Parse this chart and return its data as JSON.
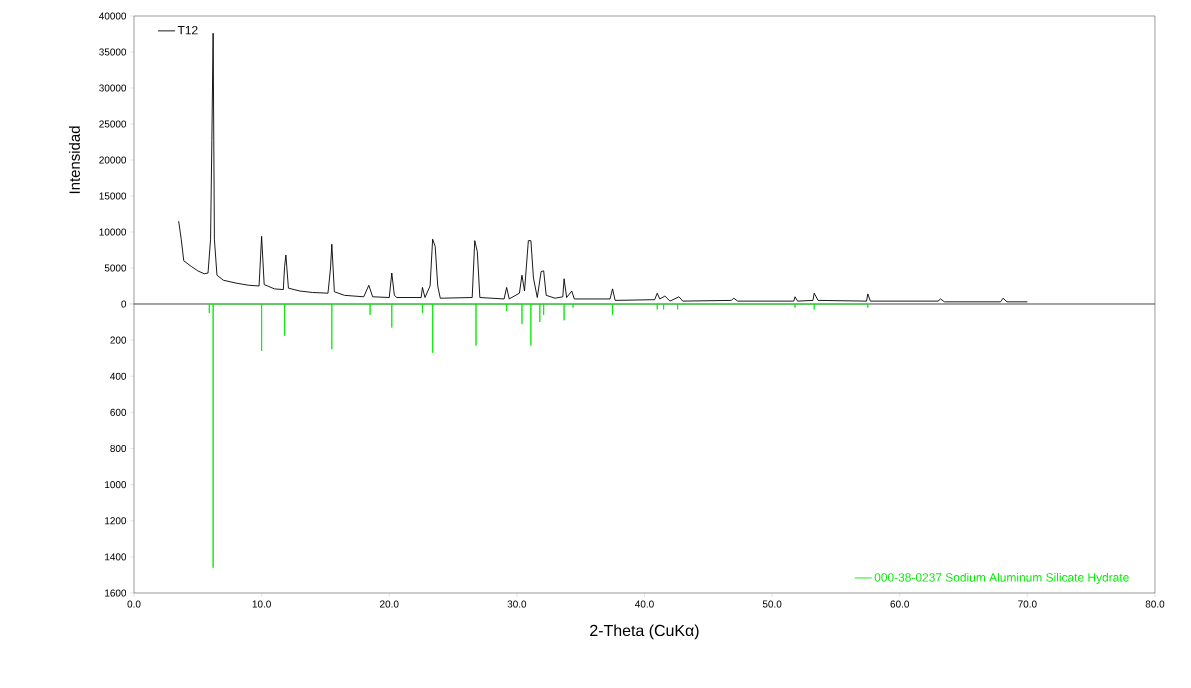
{
  "chart_data": [
    {
      "type": "line",
      "ylabel": "Intensidad",
      "xlim": [
        0,
        80
      ],
      "ylim": [
        0,
        40000
      ],
      "yticks": [
        0,
        5000,
        10000,
        15000,
        20000,
        25000,
        30000,
        35000,
        40000
      ],
      "tick_labels": "y",
      "legend": "top left",
      "series": [
        {
          "name": "T12",
          "color": "#000000",
          "x": [
            3.5,
            3.7,
            3.9,
            4.5,
            5.0,
            5.5,
            5.8,
            6.0,
            6.1,
            6.2,
            6.3,
            6.5,
            7.0,
            8.0,
            9.0,
            9.8,
            10.0,
            10.2,
            11.0,
            11.7,
            11.8,
            11.9,
            12.1,
            13.0,
            14.0,
            15.2,
            15.4,
            15.5,
            15.7,
            16.5,
            18.0,
            18.4,
            18.7,
            20.0,
            20.2,
            20.4,
            20.6,
            22.5,
            22.6,
            22.8,
            23.2,
            23.4,
            23.6,
            23.8,
            24.0,
            26.5,
            26.7,
            26.9,
            27.1,
            29.0,
            29.2,
            29.4,
            30.2,
            30.4,
            30.6,
            30.9,
            31.1,
            31.3,
            31.6,
            31.9,
            32.1,
            32.3,
            33.0,
            33.6,
            33.7,
            33.9,
            34.3,
            34.5,
            37.3,
            37.5,
            37.7,
            40.8,
            41.0,
            41.2,
            41.6,
            42.0,
            42.7,
            43.0,
            46.8,
            47.0,
            47.3,
            51.7,
            51.8,
            52.0,
            53.2,
            53.3,
            53.6,
            57.4,
            57.5,
            57.7,
            63.0,
            63.2,
            63.5,
            67.9,
            68.1,
            68.4,
            70.0
          ],
          "values": [
            11500,
            9000,
            6000,
            5200,
            4600,
            4200,
            4300,
            9000,
            22700,
            37600,
            9000,
            4000,
            3300,
            2900,
            2600,
            2500,
            9400,
            2700,
            2100,
            2000,
            5200,
            6800,
            2200,
            1800,
            1600,
            1500,
            5000,
            8300,
            1700,
            1200,
            1000,
            2600,
            1000,
            900,
            4300,
            1200,
            900,
            900,
            2300,
            900,
            2500,
            9000,
            8000,
            2500,
            800,
            900,
            8800,
            7300,
            900,
            700,
            2300,
            700,
            1500,
            4000,
            1800,
            8800,
            8800,
            3600,
            900,
            4500,
            4600,
            1200,
            800,
            1000,
            3500,
            900,
            1800,
            700,
            700,
            2100,
            500,
            600,
            1500,
            700,
            1100,
            400,
            1000,
            400,
            500,
            800,
            400,
            400,
            1000,
            400,
            500,
            1500,
            500,
            400,
            1400,
            400,
            400,
            700,
            300,
            300,
            800,
            300,
            300
          ]
        }
      ]
    },
    {
      "type": "line",
      "xlabel": "2-Theta (CuKα)",
      "xlim": [
        0,
        80
      ],
      "ylim": [
        1600,
        0
      ],
      "xticks": [
        {
          "value": 0,
          "label": "0.0"
        },
        {
          "value": 10,
          "label": "10.0"
        },
        {
          "value": 20,
          "label": "20.0"
        },
        {
          "value": 30,
          "label": "30.0"
        },
        {
          "value": 40,
          "label": "40.0"
        },
        {
          "value": 50,
          "label": "50.0"
        },
        {
          "value": 60,
          "label": "60.0"
        },
        {
          "value": 70,
          "label": "70.0"
        },
        {
          "value": 80,
          "label": "80.0"
        }
      ],
      "yticks": [
        {
          "value": 0,
          "label": null
        },
        200,
        400,
        600,
        800,
        1000,
        1200,
        1400,
        1600
      ],
      "legend": "bottom right",
      "series": [
        {
          "name": "000-38-0237 Sodium Aluminum Silicate Hydrate",
          "color": "#00ee00",
          "x": [
            5.9,
            5.9,
            5.9,
            6.2,
            6.2,
            6.2,
            10.0,
            10.0,
            10.0,
            11.8,
            11.8,
            11.8,
            15.5,
            15.5,
            15.5,
            18.5,
            18.5,
            18.5,
            20.2,
            20.2,
            20.2,
            22.6,
            22.6,
            22.6,
            23.4,
            23.4,
            23.4,
            26.8,
            26.8,
            26.8,
            29.2,
            29.2,
            29.2,
            30.4,
            30.4,
            30.4,
            31.1,
            31.1,
            31.1,
            31.8,
            31.8,
            31.8,
            32.1,
            32.1,
            32.1,
            33.7,
            33.7,
            33.7,
            34.4,
            34.4,
            34.4,
            37.5,
            37.5,
            37.5,
            41.0,
            41.0,
            41.0,
            41.5,
            41.5,
            41.5,
            42.6,
            42.6,
            42.6,
            51.8,
            51.8,
            51.8,
            53.3,
            53.3,
            53.3,
            57.5,
            57.5,
            57.5
          ],
          "values": [
            0,
            50,
            0,
            0,
            1460,
            0,
            0,
            260,
            0,
            0,
            175,
            0,
            0,
            250,
            0,
            0,
            60,
            0,
            0,
            130,
            0,
            0,
            50,
            0,
            0,
            270,
            0,
            0,
            230,
            0,
            0,
            40,
            0,
            0,
            110,
            0,
            0,
            230,
            0,
            0,
            100,
            0,
            0,
            60,
            0,
            0,
            90,
            0,
            0,
            20,
            0,
            0,
            60,
            0,
            0,
            30,
            0,
            0,
            30,
            0,
            0,
            30,
            0,
            0,
            20,
            0,
            0,
            30,
            0,
            0,
            20,
            0
          ]
        }
      ]
    }
  ]
}
